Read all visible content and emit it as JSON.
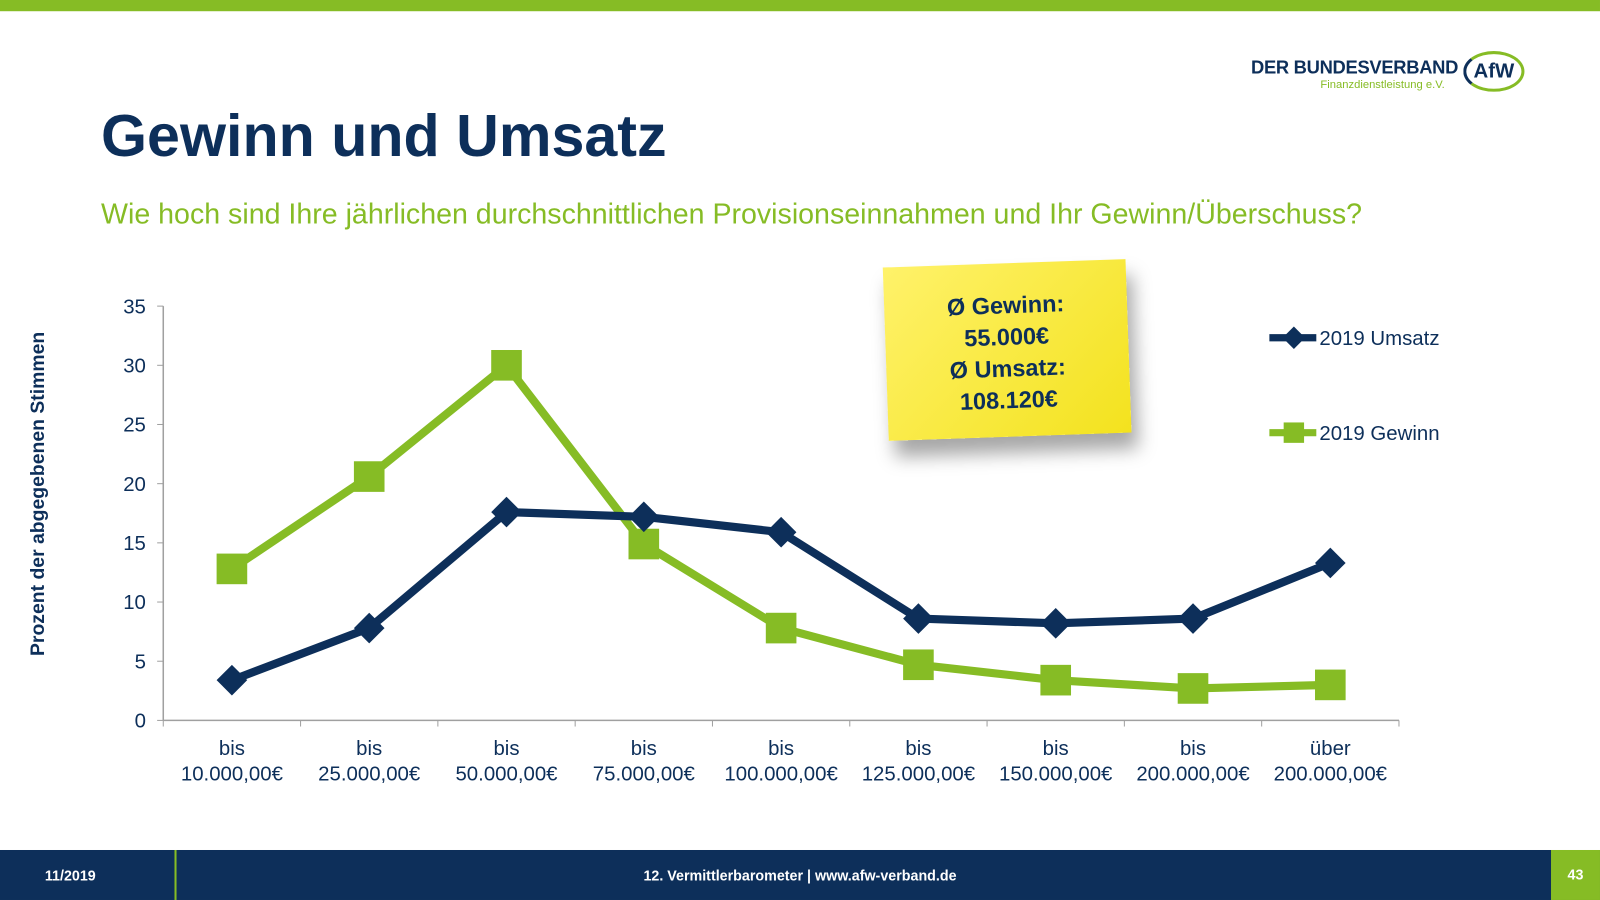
{
  "title": "Gewinn und Umsatz",
  "subtitle": "Wie hoch sind Ihre jährlichen durchschnittlichen Provisionseinnahmen und Ihr Gewinn/Überschuss?",
  "logo": {
    "line1": "DER BUNDESVERBAND",
    "line2": "Finanzdienstleistung e.V.",
    "mark": "AfW"
  },
  "note": {
    "line1": "Ø Gewinn:",
    "line2": "55.000€",
    "line3": "Ø Umsatz:",
    "line4": "108.120€"
  },
  "footer": {
    "date": "11/2019",
    "center": "12. Vermittlerbarometer | www.afw-verband.de",
    "page": "43"
  },
  "colors": {
    "umsatz": "#0d2f5a",
    "gewinn": "#86bc25"
  },
  "chart_data": {
    "type": "line",
    "ylabel": "Prozent der abgegebenen Stimmen",
    "ylim": [
      0,
      35
    ],
    "yticks": [
      0,
      5,
      10,
      15,
      20,
      25,
      30,
      35
    ],
    "grid": false,
    "legend": "right",
    "categories": [
      [
        "bis",
        "10.000,00€"
      ],
      [
        "bis",
        "25.000,00€"
      ],
      [
        "bis",
        "50.000,00€"
      ],
      [
        "bis",
        "75.000,00€"
      ],
      [
        "bis",
        "100.000,00€"
      ],
      [
        "bis",
        "125.000,00€"
      ],
      [
        "bis",
        "150.000,00€"
      ],
      [
        "bis",
        "200.000,00€"
      ],
      [
        "über",
        "200.000,00€"
      ]
    ],
    "series": [
      {
        "name": "2019 Umsatz",
        "marker": "diamond",
        "color": "#0d2f5a",
        "values": [
          3.4,
          7.8,
          17.6,
          17.2,
          15.9,
          8.6,
          8.2,
          8.6,
          13.3
        ]
      },
      {
        "name": "2019 Gewinn",
        "marker": "square",
        "color": "#86bc25",
        "values": [
          12.8,
          20.6,
          30.0,
          14.9,
          7.8,
          4.7,
          3.4,
          2.7,
          3.0
        ]
      }
    ]
  }
}
